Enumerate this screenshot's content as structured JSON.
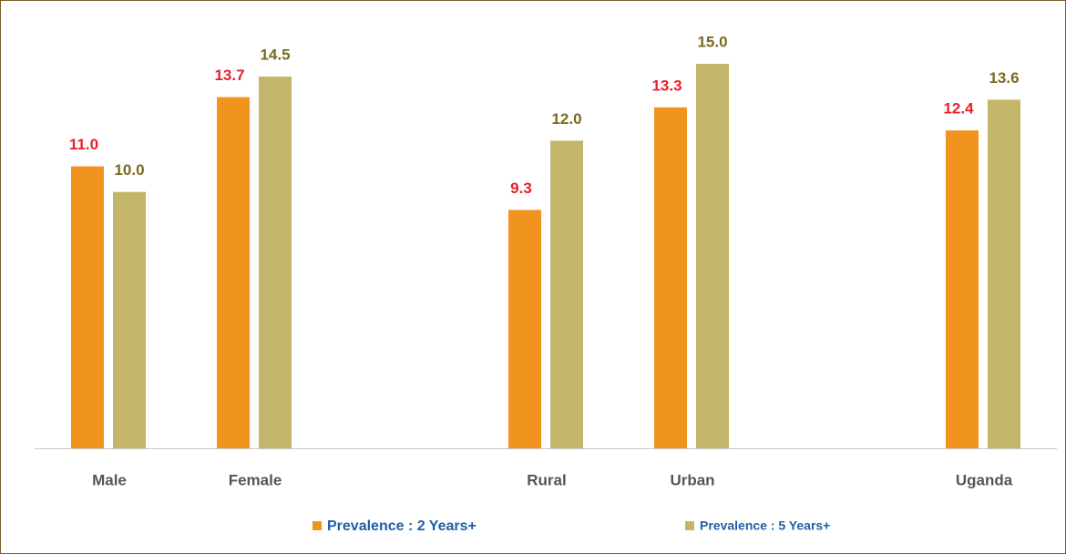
{
  "chart_data": {
    "type": "bar",
    "categories": [
      "Male",
      "Female",
      null,
      "Rural",
      "Urban",
      null,
      "Uganda"
    ],
    "series": [
      {
        "name": "Prevalence : 2 Years+",
        "color": "#f0941f",
        "label_color": "#e8202a",
        "values": [
          11.0,
          13.7,
          null,
          9.3,
          13.3,
          null,
          12.4
        ],
        "value_labels": [
          "11.0",
          "13.7",
          null,
          "9.3",
          "13.3",
          null,
          "12.4"
        ]
      },
      {
        "name": "Prevalence : 5 Years+",
        "color": "#c3b66b",
        "label_color": "#7a6a1e",
        "values": [
          10.0,
          14.5,
          null,
          12.0,
          15.0,
          null,
          13.6
        ],
        "value_labels": [
          "10.0",
          "14.5",
          null,
          "12.0",
          "15.0",
          null,
          "13.6"
        ]
      }
    ],
    "ylim": [
      0,
      15
    ],
    "legend": "bottom"
  }
}
